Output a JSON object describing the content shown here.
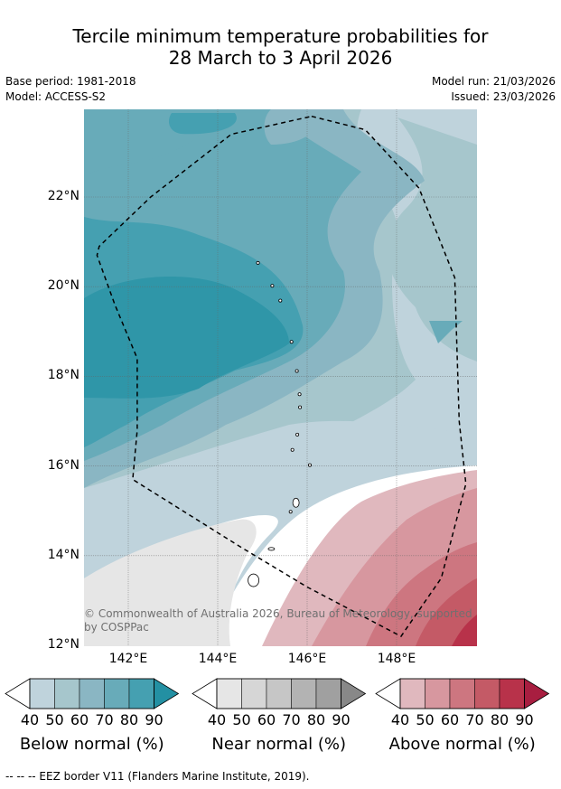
{
  "title_line1": "Tercile minimum temperature probabilities for",
  "title_line2": "28 March to 3 April 2026",
  "base_period": "Base period: 1981-2018",
  "model": "Model: ACCESS-S2",
  "model_run": "Model run: 21/03/2026",
  "issued": "Issued: 23/03/2026",
  "copyright": "© Commonwealth of Australia 2026, Bureau of Meteorology, supported by COSPPac",
  "footer": "--  --  -- EEZ border V11 (Flanders Marine Institute, 2019).",
  "map": {
    "lat_range": [
      12,
      24
    ],
    "lon_range": [
      141,
      149.8
    ],
    "lat_labels": [
      "22°N",
      "20°N",
      "18°N",
      "16°N",
      "14°N",
      "12°N"
    ],
    "lon_labels": [
      "142°E",
      "144°E",
      "146°E",
      "148°E"
    ],
    "eez_border": [
      [
        146.1,
        23.8
      ],
      [
        147.3,
        23.5
      ],
      [
        148.5,
        22.2
      ],
      [
        149.3,
        20.2
      ],
      [
        149.4,
        17.0
      ],
      [
        149.55,
        15.6
      ],
      [
        149.0,
        13.5
      ],
      [
        148.1,
        12.2
      ],
      [
        146.0,
        13.3
      ],
      [
        144.5,
        14.2
      ],
      [
        142.1,
        15.7
      ],
      [
        142.2,
        16.8
      ],
      [
        142.2,
        18.4
      ],
      [
        141.7,
        19.6
      ],
      [
        141.3,
        20.7
      ],
      [
        141.35,
        20.9
      ],
      [
        142.5,
        22.0
      ],
      [
        144.3,
        23.4
      ],
      [
        146.1,
        23.8
      ]
    ],
    "islands": [
      {
        "name": "Farallon de Pajaros",
        "lon": 144.9,
        "lat": 20.53
      },
      {
        "name": "Maug",
        "lon": 145.22,
        "lat": 20.02
      },
      {
        "name": "Asuncion",
        "lon": 145.4,
        "lat": 19.69
      },
      {
        "name": "Agrihan",
        "lon": 145.65,
        "lat": 18.77
      },
      {
        "name": "Pagan",
        "lon": 145.77,
        "lat": 18.12
      },
      {
        "name": "Alamagan",
        "lon": 145.83,
        "lat": 17.6
      },
      {
        "name": "Guguan",
        "lon": 145.84,
        "lat": 17.31
      },
      {
        "name": "Sarigan",
        "lon": 145.78,
        "lat": 16.7
      },
      {
        "name": "Anatahan",
        "lon": 145.67,
        "lat": 16.36
      },
      {
        "name": "Farallon de Medinilla",
        "lon": 146.06,
        "lat": 16.02
      },
      {
        "name": "Saipan",
        "lon": 145.75,
        "lat": 15.18
      },
      {
        "name": "Tinian",
        "lon": 145.63,
        "lat": 14.98
      },
      {
        "name": "Rota",
        "lon": 145.2,
        "lat": 14.15
      },
      {
        "name": "Guam",
        "lon": 144.8,
        "lat": 13.45
      }
    ]
  },
  "colorbars": [
    {
      "title": "Below normal (%)",
      "ticks": [
        "40",
        "50",
        "60",
        "70",
        "80",
        "90"
      ],
      "colors": [
        "#ffffff",
        "#bfd3dc",
        "#a6c6cc",
        "#8ab6c3",
        "#68abb9",
        "#45a0b1",
        "#2390a3"
      ]
    },
    {
      "title": "Near normal (%)",
      "ticks": [
        "40",
        "50",
        "60",
        "70",
        "80",
        "90"
      ],
      "colors": [
        "#ffffff",
        "#e6e6e6",
        "#d6d6d6",
        "#c6c6c6",
        "#b3b3b3",
        "#a0a0a0",
        "#888888"
      ]
    },
    {
      "title": "Above normal (%)",
      "ticks": [
        "40",
        "50",
        "60",
        "70",
        "80",
        "90"
      ],
      "colors": [
        "#ffffff",
        "#e0b8be",
        "#d7979f",
        "#cd7680",
        "#c45a66",
        "#b8324a",
        "#a81e40"
      ]
    }
  ]
}
